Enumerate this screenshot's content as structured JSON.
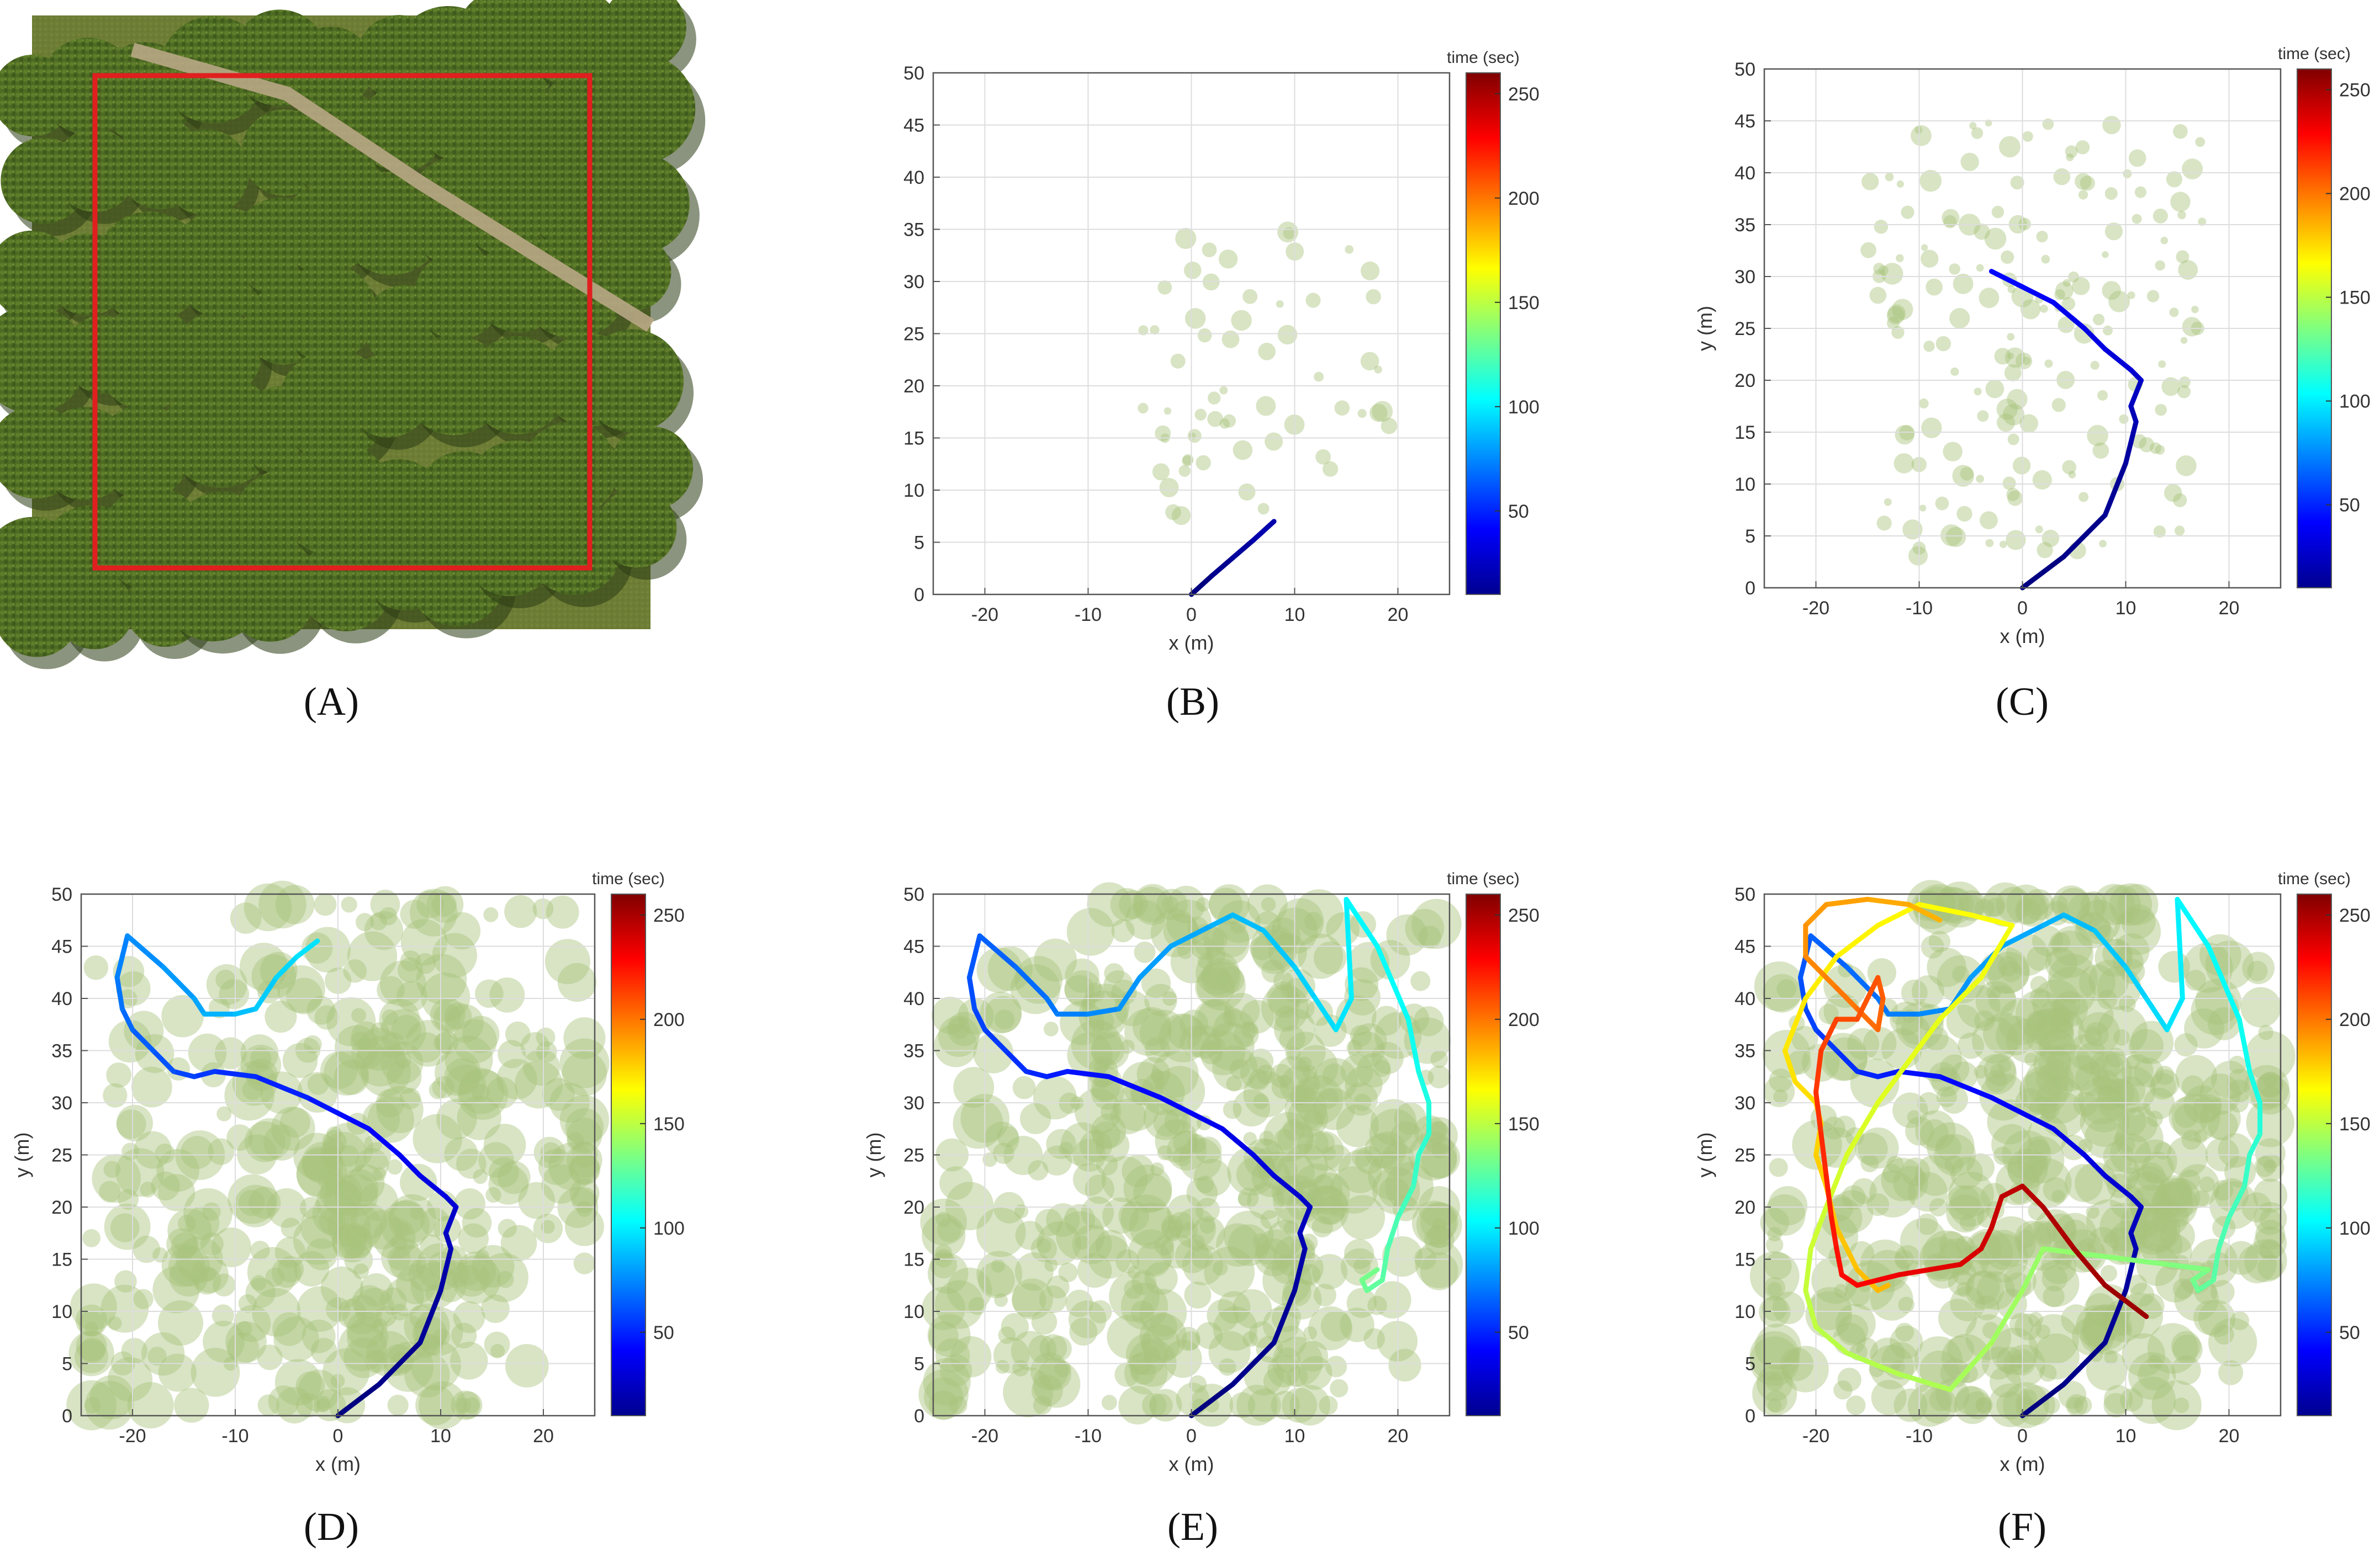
{
  "panel_labels": [
    "(A)",
    "(B)",
    "(C)",
    "(D)",
    "(E)",
    "(F)"
  ],
  "image_a": {
    "description_free": true,
    "box_color": "#e01f1f",
    "grass": "#6e7d35",
    "tree": "#4f6e22",
    "road": "#b8a785"
  },
  "chart_data": [
    {
      "panel": "B",
      "type": "line",
      "xlabel": "x (m)",
      "ylabel": "",
      "xlim": [
        -25,
        25
      ],
      "ylim": [
        0,
        50
      ],
      "xticks": [
        -20,
        -10,
        0,
        10,
        20
      ],
      "yticks": [
        0,
        5,
        10,
        15,
        20,
        25,
        30,
        35,
        40,
        45,
        50
      ],
      "ytick_labels": [
        "0",
        "5",
        "10",
        "15",
        "20",
        "25",
        "30",
        "35",
        "40",
        "45",
        "50"
      ],
      "grid": true,
      "colorbar": {
        "title": "time (sec)",
        "ticks": [
          50,
          100,
          150,
          200,
          250
        ],
        "range": [
          10,
          260
        ],
        "colormap": "jet"
      },
      "paths": [
        {
          "x": [
            0,
            2,
            4,
            6,
            8
          ],
          "y": [
            0,
            1.8,
            3.5,
            5.2,
            7
          ],
          "t0": 10,
          "t1": 25
        }
      ]
    },
    {
      "panel": "C",
      "type": "line",
      "xlabel": "x (m)",
      "ylabel": "y (m)",
      "xlim": [
        -25,
        25
      ],
      "ylim": [
        0,
        50
      ],
      "xticks": [
        -20,
        -10,
        0,
        10,
        20
      ],
      "yticks": [
        0,
        5,
        10,
        15,
        20,
        25,
        30,
        35,
        40,
        45,
        50
      ],
      "ytick_labels": [
        "0",
        "5",
        "10",
        "15",
        "20",
        "25",
        "30",
        "35",
        "40",
        "45",
        "50"
      ],
      "grid": true,
      "colorbar": {
        "title": "time (sec)",
        "ticks": [
          50,
          100,
          150,
          200,
          250
        ],
        "range": [
          10,
          260
        ],
        "colormap": "jet"
      },
      "paths": [
        {
          "x": [
            0,
            4,
            8,
            10,
            10.5,
            11,
            10.5,
            11.5,
            10.5,
            8,
            6,
            3,
            0,
            -3
          ],
          "y": [
            0,
            3,
            7,
            12,
            14,
            16,
            17.5,
            20,
            21,
            23,
            25,
            27.5,
            29,
            30.5
          ],
          "t0": 10,
          "t1": 45
        }
      ]
    },
    {
      "panel": "D",
      "type": "line",
      "xlabel": "x (m)",
      "ylabel": "y (m)",
      "xlim": [
        -25,
        25
      ],
      "ylim": [
        0,
        50
      ],
      "xticks": [
        -20,
        -10,
        0,
        10,
        20
      ],
      "yticks": [
        0,
        5,
        10,
        15,
        20,
        25,
        30,
        35,
        40,
        45,
        50
      ],
      "ytick_labels": [
        "0",
        "5",
        "10",
        "15",
        "20",
        "25",
        "30",
        "35",
        "40",
        "45",
        "50"
      ],
      "grid": true,
      "colorbar": {
        "title": "time (sec)",
        "ticks": [
          50,
          100,
          150,
          200,
          250
        ],
        "range": [
          10,
          260
        ],
        "colormap": "jet"
      },
      "paths": [
        {
          "x": [
            0,
            4,
            8,
            10,
            10.5,
            11,
            10.5,
            11.5,
            10.5,
            8,
            6,
            3,
            0,
            -3,
            -8,
            -12,
            -14,
            -16,
            -18,
            -20,
            -21,
            -21.5,
            -20.5,
            -17,
            -14,
            -13,
            -10,
            -8,
            -6,
            -4,
            -2
          ],
          "y": [
            0,
            3,
            7,
            12,
            14,
            16,
            17.5,
            20,
            21,
            23,
            25,
            27.5,
            29,
            30.5,
            32.5,
            33,
            32.5,
            33,
            35,
            37,
            39,
            42,
            46,
            43,
            40,
            38.5,
            38.5,
            39,
            42,
            44,
            45.5
          ],
          "t0": 10,
          "t1": 100
        }
      ]
    },
    {
      "panel": "E",
      "type": "line",
      "xlabel": "x (m)",
      "ylabel": "y (m)",
      "xlim": [
        -25,
        25
      ],
      "ylim": [
        0,
        50
      ],
      "xticks": [
        -20,
        -10,
        0,
        10,
        20
      ],
      "yticks": [
        0,
        5,
        10,
        15,
        20,
        25,
        30,
        35,
        40,
        45,
        50
      ],
      "ytick_labels": [
        "0",
        "5",
        "10",
        "15",
        "20",
        "25",
        "30",
        "35",
        "40",
        "45",
        "50"
      ],
      "grid": true,
      "colorbar": {
        "title": "time (sec)",
        "ticks": [
          50,
          100,
          150,
          200,
          250
        ],
        "range": [
          10,
          260
        ],
        "colormap": "jet"
      },
      "paths": [
        {
          "x": [
            0,
            4,
            8,
            10,
            10.5,
            11,
            10.5,
            11.5,
            10.5,
            8,
            6,
            3,
            0,
            -3,
            -8,
            -12,
            -14,
            -16,
            -18,
            -20,
            -21,
            -21.5,
            -20.5,
            -17,
            -14,
            -13,
            -10,
            -7,
            -5,
            -2,
            2,
            4,
            7,
            10,
            12,
            14,
            15.5,
            15,
            18,
            21,
            22,
            23,
            23,
            22,
            21.5,
            20,
            19,
            18.5,
            17,
            16.5,
            18
          ],
          "y": [
            0,
            3,
            7,
            12,
            14,
            16,
            17.5,
            20,
            21,
            23,
            25,
            27.5,
            29,
            30.5,
            32.5,
            33,
            32.5,
            33,
            35,
            37,
            39,
            42,
            46,
            43,
            40,
            38.5,
            38.5,
            39,
            42,
            45,
            47,
            48,
            46.5,
            43,
            40,
            37,
            40,
            49.5,
            45,
            38,
            33,
            30,
            27,
            25,
            22,
            19,
            16,
            13,
            12,
            13,
            14
          ],
          "t0": 10,
          "t1": 135
        }
      ]
    },
    {
      "panel": "F",
      "type": "line",
      "xlabel": "x (m)",
      "ylabel": "y (m)",
      "xlim": [
        -25,
        25
      ],
      "ylim": [
        0,
        50
      ],
      "xticks": [
        -20,
        -10,
        0,
        10,
        20
      ],
      "yticks": [
        0,
        5,
        10,
        15,
        20,
        25,
        30,
        35,
        40,
        45,
        50
      ],
      "ytick_labels": [
        "0",
        "5",
        "10",
        "15",
        "20",
        "25",
        "30",
        "35",
        "40",
        "45",
        "50"
      ],
      "grid": true,
      "colorbar": {
        "title": "time (sec)",
        "ticks": [
          50,
          100,
          150,
          200,
          250
        ],
        "range": [
          10,
          260
        ],
        "colormap": "jet"
      },
      "paths": [
        {
          "x": [
            0,
            4,
            8,
            10,
            10.5,
            11,
            10.5,
            11.5,
            10.5,
            8,
            6,
            3,
            0,
            -3,
            -8,
            -12,
            -14,
            -16,
            -18,
            -20,
            -21,
            -21.5,
            -20.5,
            -17,
            -14,
            -13,
            -10,
            -7,
            -5,
            -2,
            2,
            4,
            7,
            10,
            12,
            14,
            15.5,
            15,
            18,
            21,
            22,
            23,
            23,
            22,
            21.5,
            20,
            19,
            18.5,
            17,
            16.5,
            18
          ],
          "y": [
            0,
            3,
            7,
            12,
            14,
            16,
            17.5,
            20,
            21,
            23,
            25,
            27.5,
            29,
            30.5,
            32.5,
            33,
            32.5,
            33,
            35,
            37,
            39,
            42,
            46,
            43,
            40,
            38.5,
            38.5,
            39,
            42,
            45,
            47,
            48,
            46.5,
            43,
            40,
            37,
            40,
            49.5,
            45,
            38,
            33,
            30,
            27,
            25,
            22,
            19,
            16,
            13,
            12,
            13,
            14
          ],
          "t0": 10,
          "t1": 135
        },
        {
          "x": [
            18,
            14,
            10,
            6,
            2,
            0,
            -3,
            -7,
            -12,
            -17,
            -20,
            -21,
            -20.5,
            -19,
            -17,
            -14,
            -11,
            -8,
            -4,
            -1
          ],
          "y": [
            14,
            14.5,
            15,
            15.5,
            16,
            12,
            7,
            2.5,
            4,
            6,
            8.5,
            12,
            16,
            20,
            25,
            30,
            34,
            38,
            42,
            47
          ],
          "t0": 135,
          "t1": 165
        },
        {
          "x": [
            -1,
            -5,
            -10,
            -14,
            -18,
            -21,
            -23,
            -22,
            -20,
            -19.5,
            -20,
            -19,
            -18,
            -16,
            -14,
            -13
          ],
          "y": [
            47,
            48,
            49,
            47,
            44,
            40,
            35,
            32,
            30,
            28,
            25,
            22,
            18,
            14,
            12,
            12.5
          ],
          "t0": 165,
          "t1": 185
        },
        {
          "x": [
            -8,
            -11,
            -15,
            -19,
            -21,
            -21,
            -19,
            -18,
            -16,
            -14,
            -13.5,
            -14,
            -16,
            -18,
            -19.5,
            -20,
            -19.5,
            -19,
            -18.5,
            -18,
            -17.5,
            -16,
            -14,
            -12,
            -9,
            -6,
            -4,
            -3,
            -2,
            0,
            2,
            5,
            8,
            12
          ],
          "y": [
            47.5,
            49,
            49.5,
            49,
            47,
            44,
            42,
            41,
            39,
            37,
            40,
            42,
            38,
            38,
            35,
            31,
            27,
            23,
            19,
            16,
            13.5,
            12.5,
            13,
            13.5,
            14,
            14.5,
            16,
            18,
            21,
            22,
            20,
            16,
            12.5,
            9.5
          ],
          "t0": 185,
          "t1": 255
        }
      ]
    }
  ]
}
